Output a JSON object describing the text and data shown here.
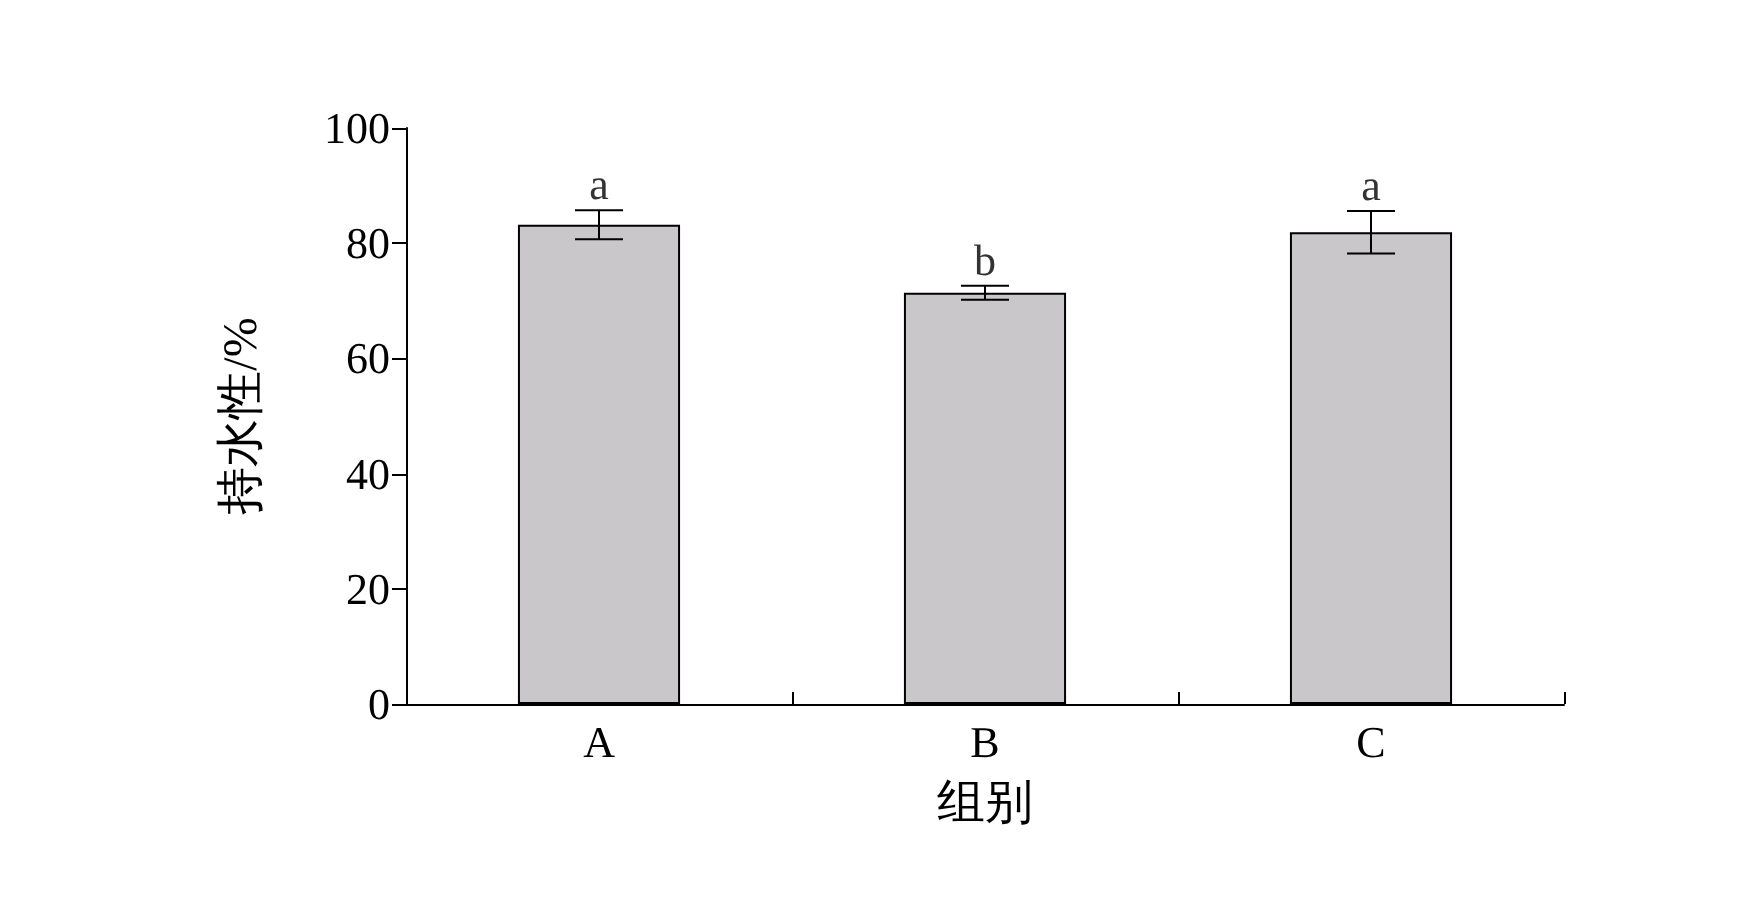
{
  "chart_data": {
    "type": "bar",
    "xlabel": "组别",
    "ylabel": "持水性/%",
    "categories": [
      "A",
      "B",
      "C"
    ],
    "values": [
      83.2,
      71.4,
      81.9
    ],
    "errors": [
      2.5,
      1.2,
      3.7
    ],
    "color": "#c9c7c9",
    "ylim": [
      0,
      100
    ],
    "yticks": [
      0,
      20,
      40,
      60,
      80,
      100
    ],
    "annotations": [
      {
        "text": "a",
        "x": "A",
        "y": 85.7
      },
      {
        "text": "b",
        "x": "B",
        "y": 72.6
      },
      {
        "text": "a",
        "x": "C",
        "y": 85.6
      }
    ]
  }
}
